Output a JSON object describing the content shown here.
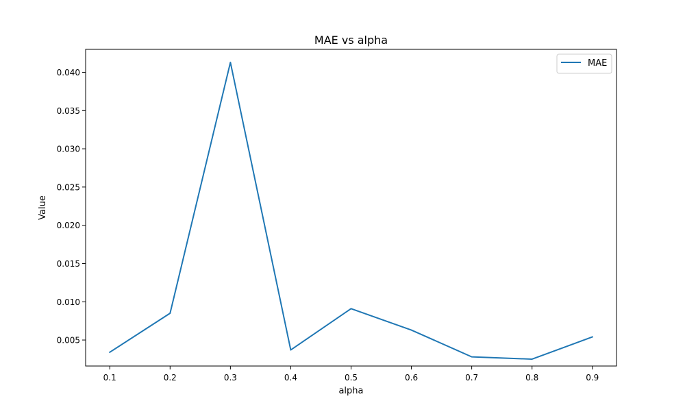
{
  "chart_data": {
    "type": "line",
    "title": "MAE vs alpha",
    "xlabel": "alpha",
    "ylabel": "Value",
    "x": [
      0.1,
      0.2,
      0.3,
      0.4,
      0.5,
      0.6,
      0.7,
      0.8,
      0.9
    ],
    "xtick_labels": [
      "0.1",
      "0.2",
      "0.3",
      "0.4",
      "0.5",
      "0.6",
      "0.7",
      "0.8",
      "0.9"
    ],
    "ytick_values": [
      0.005,
      0.01,
      0.015,
      0.02,
      0.025,
      0.03,
      0.035,
      0.04
    ],
    "ytick_labels": [
      "0.005",
      "0.010",
      "0.015",
      "0.020",
      "0.025",
      "0.030",
      "0.035",
      "0.040"
    ],
    "xlim": [
      0.06,
      0.94
    ],
    "ylim": [
      0.0016,
      0.043
    ],
    "grid": false,
    "legend_position": "top-right",
    "series": [
      {
        "name": "MAE",
        "color": "#1f77b4",
        "values": [
          0.0034,
          0.0085,
          0.0413,
          0.0037,
          0.0091,
          0.0063,
          0.0028,
          0.0025,
          0.0054
        ]
      }
    ]
  }
}
